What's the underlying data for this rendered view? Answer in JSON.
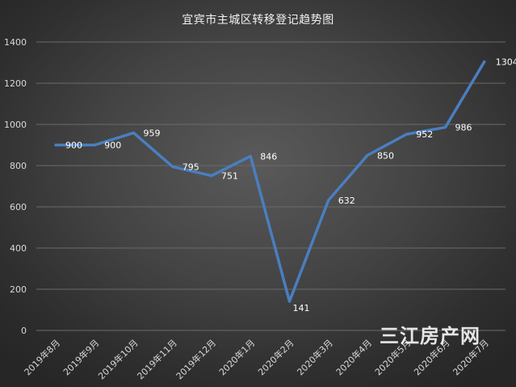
{
  "chart_data": {
    "type": "line",
    "title": "宜宾市主城区转移登记趋势图",
    "categories": [
      "2019年8月",
      "2019年9月",
      "2019年10月",
      "2019年11月",
      "2019年12月",
      "2020年1月",
      "2020年2月",
      "2020年3月",
      "2020年4月",
      "2020年5月",
      "2020年6月",
      "2020年7月"
    ],
    "series": [
      {
        "values": [
          900,
          900,
          959,
          795,
          751,
          846,
          141,
          632,
          850,
          952,
          986,
          1304
        ]
      }
    ],
    "yticks": [
      "0",
      "200",
      "400",
      "600",
      "800",
      "1000",
      "1200",
      "1400"
    ],
    "ylim": [
      0,
      1400
    ],
    "grid": true,
    "line_color": "#4a7ec0"
  },
  "watermark": "三江房产网"
}
